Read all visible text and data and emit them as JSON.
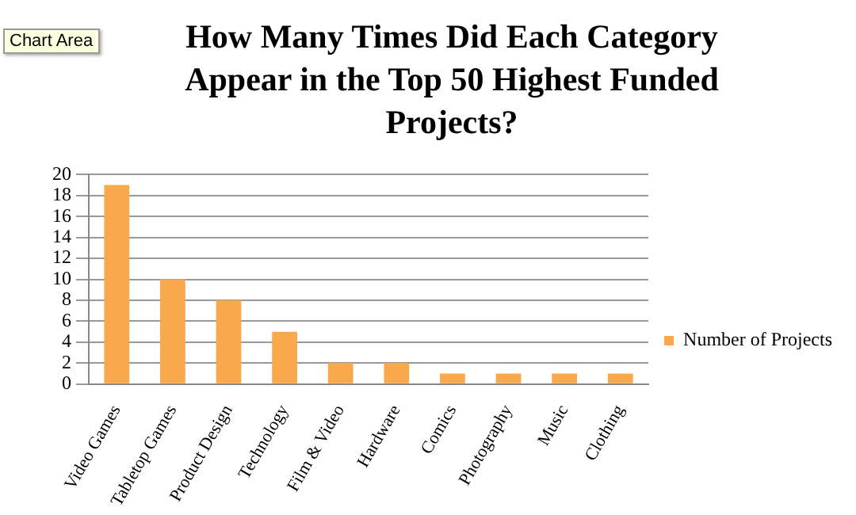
{
  "chart_data": {
    "type": "bar",
    "title": "How Many Times Did Each Category Appear in the Top 50 Highest Funded Projects?",
    "categories": [
      "Video Games",
      "Tabletop Games",
      "Product Design",
      "Technology",
      "Film & Video",
      "Hardware",
      "Comics",
      "Photography",
      "Music",
      "Clothing"
    ],
    "series": [
      {
        "name": "Number of Projects",
        "color": "#f9a94b",
        "values": [
          19,
          10,
          8,
          5,
          2,
          2,
          1,
          1,
          1,
          1
        ]
      }
    ],
    "ylim": [
      0,
      20
    ],
    "yticks": [
      0,
      2,
      4,
      6,
      8,
      10,
      12,
      14,
      16,
      18,
      20
    ],
    "grid": "y",
    "legend": "right",
    "annotations": [
      "Chart Area"
    ]
  }
}
